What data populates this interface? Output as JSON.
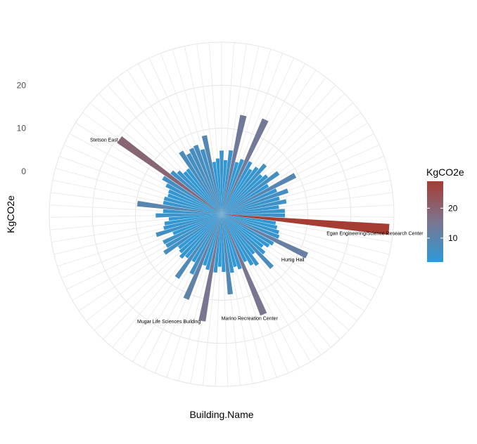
{
  "chart_data": {
    "type": "bar",
    "coord": "polar",
    "xlabel": "Building.Name",
    "ylabel": "KgCO2e",
    "yticks": [
      0,
      10,
      20
    ],
    "ylim": [
      -10,
      30
    ],
    "grid": true,
    "legend": {
      "title": "KgCO2e",
      "position": "right",
      "ticks": [
        10,
        20
      ],
      "range": [
        2,
        29
      ],
      "colors": [
        "#2b9ad8",
        "#a63d33"
      ]
    },
    "series": [
      {
        "name": "KgCO2e",
        "values": [
          4.8,
          2.6,
          5.0,
          13.5,
          2.6,
          3.6,
          14.2,
          3.9,
          2.4,
          3.6,
          5.3,
          2.9,
          3.8,
          6.3,
          2.7,
          9.3,
          3.9,
          6.3,
          3.9,
          5.3,
          3.4,
          4.7,
          4.7,
          29.0,
          2.7,
          3.2,
          3.9,
          4.3,
          12.0,
          3.8,
          3.2,
          2.1,
          3.4,
          7.0,
          1.8,
          4.4,
          3.7,
          2.3,
          15.2,
          3.4,
          2.6,
          3.8,
          8.7,
          3.4,
          2.2,
          3.6,
          15.2,
          3.3,
          2.5,
          11.3,
          5.5,
          2.8,
          8.0,
          2.9,
          3.8,
          3.0,
          2.6,
          6.0,
          4.8,
          5.0,
          2.1,
          5.9,
          3.8,
          3.4,
          2.3,
          5.3,
          3.6,
          9.7,
          3.8,
          3.8,
          3.2,
          3.4,
          4.5,
          6.0,
          19.4,
          5.2,
          4.1,
          3.0,
          3.1,
          7.3,
          6.0,
          6.8,
          7.1,
          5.7,
          8.7,
          2.3,
          3.0
        ]
      }
    ],
    "annotations": [
      {
        "label": "Egan Engineering/Science Research Center",
        "index": 23
      },
      {
        "label": "Hurtig Hall",
        "index": 28
      },
      {
        "label": "Marino Recreation Center",
        "index": 38
      },
      {
        "label": "Mugar Life Sciences Building",
        "index": 46
      },
      {
        "label": "Stetson East",
        "index": 74
      }
    ]
  }
}
